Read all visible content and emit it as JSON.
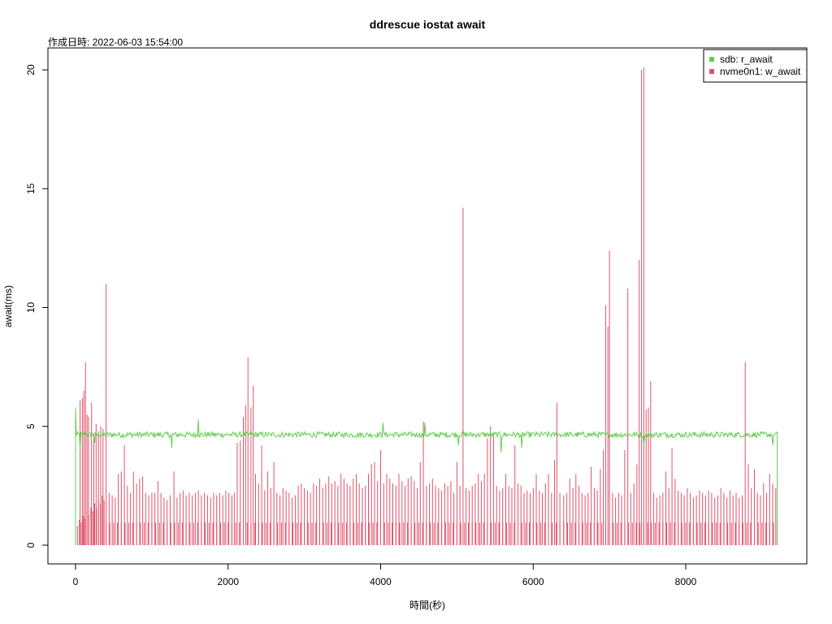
{
  "chart_data": {
    "type": "line",
    "title": "ddrescue iostat await",
    "subtitle": "作成日時: 2022-06-03 15:54:00",
    "xlabel": "時間(秒)",
    "ylabel": "await(ms)",
    "xlim": [
      0,
      9200
    ],
    "ylim": [
      0,
      20
    ],
    "xticks": [
      0,
      2000,
      4000,
      6000,
      8000
    ],
    "yticks": [
      0,
      5,
      10,
      15,
      20
    ],
    "grid": false,
    "legend_position": "top-right",
    "series": [
      {
        "name": "sdb: r_await",
        "color": "#61d04f",
        "style": "line",
        "baseline": 4.65,
        "noise": 0.1,
        "dips": [
          [
            0,
            5.8
          ],
          [
            60,
            4.0
          ],
          [
            250,
            4.3
          ],
          [
            1260,
            4.1
          ],
          [
            1610,
            5.3
          ],
          [
            4030,
            5.15
          ],
          [
            4580,
            5.15
          ],
          [
            5020,
            4.2
          ],
          [
            5580,
            3.9
          ],
          [
            5850,
            4.1
          ],
          [
            7450,
            4.2
          ],
          [
            9140,
            4.2
          ]
        ],
        "end": 9200
      },
      {
        "name": "nvme0n1: w_await",
        "color": "#df536b",
        "style": "spikes",
        "periodic_interval": 50,
        "periodic_value": 0.95,
        "medium_spikes": [
          [
            60,
            6.1
          ],
          [
            90,
            6.2
          ],
          [
            110,
            6.5
          ],
          [
            130,
            7.7
          ],
          [
            150,
            5.5
          ],
          [
            170,
            5.4
          ],
          [
            210,
            6.0
          ],
          [
            240,
            4.7
          ],
          [
            270,
            5.1
          ],
          [
            300,
            4.8
          ],
          [
            330,
            5.0
          ],
          [
            360,
            4.9
          ],
          [
            400,
            11.0
          ],
          [
            440,
            2.2
          ],
          [
            480,
            2.1
          ],
          [
            520,
            2.0
          ],
          [
            560,
            3.0
          ],
          [
            600,
            3.1
          ],
          [
            640,
            4.2
          ],
          [
            680,
            2.5
          ],
          [
            720,
            2.2
          ],
          [
            760,
            3.1
          ],
          [
            800,
            2.6
          ],
          [
            840,
            2.8
          ],
          [
            880,
            2.9
          ],
          [
            920,
            2.2
          ],
          [
            960,
            2.1
          ],
          [
            1000,
            2.2
          ],
          [
            1040,
            2.2
          ],
          [
            1080,
            2.7
          ],
          [
            1120,
            2.2
          ],
          [
            1160,
            2.0
          ],
          [
            1200,
            1.9
          ],
          [
            1240,
            2.1
          ],
          [
            1290,
            3.1
          ],
          [
            1330,
            2.0
          ],
          [
            1370,
            2.2
          ],
          [
            1410,
            2.3
          ],
          [
            1450,
            2.1
          ],
          [
            1490,
            2.2
          ],
          [
            1530,
            2.1
          ],
          [
            1570,
            2.2
          ],
          [
            1610,
            2.3
          ],
          [
            1650,
            2.1
          ],
          [
            1690,
            2.2
          ],
          [
            1730,
            2.1
          ],
          [
            1770,
            2.0
          ],
          [
            1810,
            2.2
          ],
          [
            1850,
            2.1
          ],
          [
            1890,
            2.2
          ],
          [
            1930,
            2.1
          ],
          [
            1970,
            2.3
          ],
          [
            2010,
            2.2
          ],
          [
            2050,
            2.1
          ],
          [
            2080,
            2.2
          ],
          [
            2120,
            4.3
          ],
          [
            2160,
            4.4
          ],
          [
            2200,
            5.4
          ],
          [
            2230,
            5.9
          ],
          [
            2260,
            7.9
          ],
          [
            2300,
            5.8
          ],
          [
            2330,
            6.7
          ],
          [
            2360,
            3.0
          ],
          [
            2400,
            2.6
          ],
          [
            2440,
            4.2
          ],
          [
            2480,
            2.3
          ],
          [
            2520,
            3.1
          ],
          [
            2560,
            2.4
          ],
          [
            2600,
            3.5
          ],
          [
            2640,
            2.2
          ],
          [
            2680,
            2.1
          ],
          [
            2720,
            2.4
          ],
          [
            2760,
            2.3
          ],
          [
            2800,
            2.2
          ],
          [
            2840,
            2.0
          ],
          [
            2880,
            2.1
          ],
          [
            2920,
            2.5
          ],
          [
            2960,
            2.6
          ],
          [
            3000,
            2.4
          ],
          [
            3040,
            2.3
          ],
          [
            3080,
            2.2
          ],
          [
            3120,
            2.6
          ],
          [
            3160,
            2.5
          ],
          [
            3200,
            2.8
          ],
          [
            3240,
            2.4
          ],
          [
            3280,
            2.6
          ],
          [
            3320,
            2.9
          ],
          [
            3360,
            2.6
          ],
          [
            3400,
            2.7
          ],
          [
            3440,
            2.5
          ],
          [
            3480,
            3.0
          ],
          [
            3520,
            2.8
          ],
          [
            3560,
            2.6
          ],
          [
            3600,
            2.5
          ],
          [
            3640,
            2.8
          ],
          [
            3680,
            3.0
          ],
          [
            3720,
            2.6
          ],
          [
            3760,
            2.4
          ],
          [
            3800,
            2.5
          ],
          [
            3840,
            3.0
          ],
          [
            3880,
            3.4
          ],
          [
            3920,
            3.5
          ],
          [
            3960,
            2.7
          ],
          [
            4000,
            4.0
          ],
          [
            4040,
            2.6
          ],
          [
            4080,
            3.0
          ],
          [
            4120,
            2.8
          ],
          [
            4160,
            2.6
          ],
          [
            4200,
            2.5
          ],
          [
            4240,
            3.0
          ],
          [
            4280,
            2.7
          ],
          [
            4320,
            2.5
          ],
          [
            4360,
            2.8
          ],
          [
            4400,
            2.9
          ],
          [
            4440,
            2.7
          ],
          [
            4480,
            2.4
          ],
          [
            4520,
            3.5
          ],
          [
            4560,
            5.2
          ],
          [
            4600,
            2.5
          ],
          [
            4640,
            2.6
          ],
          [
            4680,
            2.8
          ],
          [
            4720,
            2.5
          ],
          [
            4760,
            2.4
          ],
          [
            4800,
            2.3
          ],
          [
            4840,
            2.6
          ],
          [
            4880,
            2.5
          ],
          [
            4920,
            2.7
          ],
          [
            4960,
            2.2
          ],
          [
            5000,
            3.5
          ],
          [
            5040,
            2.5
          ],
          [
            5080,
            14.2
          ],
          [
            5120,
            2.4
          ],
          [
            5160,
            2.3
          ],
          [
            5200,
            2.5
          ],
          [
            5240,
            2.6
          ],
          [
            5280,
            3.0
          ],
          [
            5320,
            2.7
          ],
          [
            5360,
            3.0
          ],
          [
            5400,
            4.5
          ],
          [
            5440,
            5.0
          ],
          [
            5480,
            4.6
          ],
          [
            5520,
            2.5
          ],
          [
            5560,
            2.3
          ],
          [
            5600,
            2.4
          ],
          [
            5640,
            3.0
          ],
          [
            5680,
            2.5
          ],
          [
            5720,
            2.4
          ],
          [
            5760,
            4.2
          ],
          [
            5800,
            2.6
          ],
          [
            5840,
            2.5
          ],
          [
            5880,
            2.2
          ],
          [
            5920,
            2.3
          ],
          [
            5960,
            2.2
          ],
          [
            6000,
            2.4
          ],
          [
            6040,
            3.0
          ],
          [
            6080,
            2.3
          ],
          [
            6120,
            2.2
          ],
          [
            6160,
            2.6
          ],
          [
            6200,
            3.0
          ],
          [
            6240,
            2.2
          ],
          [
            6280,
            3.6
          ],
          [
            6310,
            6.0
          ],
          [
            6350,
            2.2
          ],
          [
            6400,
            2.1
          ],
          [
            6440,
            2.2
          ],
          [
            6480,
            2.8
          ],
          [
            6520,
            2.4
          ],
          [
            6560,
            3.0
          ],
          [
            6600,
            2.5
          ],
          [
            6640,
            2.2
          ],
          [
            6680,
            2.1
          ],
          [
            6720,
            2.2
          ],
          [
            6760,
            3.3
          ],
          [
            6800,
            2.4
          ],
          [
            6840,
            2.3
          ],
          [
            6880,
            3.2
          ],
          [
            6920,
            4.0
          ],
          [
            6950,
            10.1
          ],
          [
            6980,
            9.2
          ],
          [
            7000,
            12.4
          ],
          [
            7040,
            2.2
          ],
          [
            7080,
            2.0
          ],
          [
            7120,
            2.2
          ],
          [
            7160,
            2.1
          ],
          [
            7200,
            4.0
          ],
          [
            7240,
            10.8
          ],
          [
            7280,
            2.2
          ],
          [
            7320,
            2.6
          ],
          [
            7360,
            3.4
          ],
          [
            7390,
            12.0
          ],
          [
            7420,
            20.0
          ],
          [
            7450,
            20.1
          ],
          [
            7480,
            5.7
          ],
          [
            7510,
            5.8
          ],
          [
            7540,
            6.9
          ],
          [
            7580,
            2.2
          ],
          [
            7620,
            2.0
          ],
          [
            7660,
            2.1
          ],
          [
            7700,
            2.2
          ],
          [
            7740,
            3.1
          ],
          [
            7780,
            2.4
          ],
          [
            7820,
            4.1
          ],
          [
            7860,
            2.8
          ],
          [
            7900,
            2.3
          ],
          [
            7940,
            2.2
          ],
          [
            7980,
            2.1
          ],
          [
            8020,
            2.4
          ],
          [
            8060,
            2.2
          ],
          [
            8100,
            2.0
          ],
          [
            8140,
            2.1
          ],
          [
            8180,
            2.3
          ],
          [
            8220,
            2.2
          ],
          [
            8260,
            2.1
          ],
          [
            8300,
            2.3
          ],
          [
            8340,
            2.2
          ],
          [
            8380,
            2.0
          ],
          [
            8420,
            2.1
          ],
          [
            8460,
            2.4
          ],
          [
            8500,
            2.2
          ],
          [
            8540,
            2.0
          ],
          [
            8580,
            2.3
          ],
          [
            8620,
            2.1
          ],
          [
            8660,
            2.2
          ],
          [
            8700,
            2.0
          ],
          [
            8740,
            2.1
          ],
          [
            8780,
            7.7
          ],
          [
            8820,
            3.4
          ],
          [
            8860,
            2.4
          ],
          [
            8900,
            3.2
          ],
          [
            8940,
            2.2
          ],
          [
            8980,
            2.1
          ],
          [
            9020,
            2.6
          ],
          [
            9060,
            2.2
          ],
          [
            9100,
            3.0
          ],
          [
            9140,
            2.6
          ],
          [
            9180,
            2.4
          ]
        ],
        "ramp_range": [
          0,
          380
        ],
        "ramp_values": [
          0.9,
          2.2
        ],
        "end": 9200
      }
    ]
  }
}
